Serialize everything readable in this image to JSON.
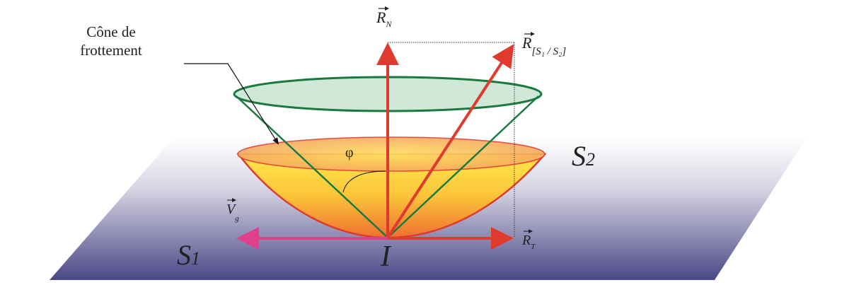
{
  "labels": {
    "cone_line1": "Cône de",
    "cone_line2": "frottement",
    "rn": "R",
    "rn_sub": "N",
    "r": "R",
    "r_sub": "[S₁ / S₂]",
    "rt": "R",
    "rt_sub": "T",
    "vg": "V",
    "vg_sub": "g",
    "phi": "φ",
    "s1": "S",
    "s1_sub": "1",
    "s2": "S",
    "s2_sub": "2",
    "point": "I"
  },
  "colors": {
    "plane_top": "#ffffff",
    "plane_bottom": "#4a4886",
    "cone_green": "#1a7a3e",
    "cone_fill": "#cfe8d8",
    "bowl_top": "#ffe84a",
    "bowl_bottom": "#f07030",
    "arrow_red": "#e03a2e",
    "arrow_pink": "#e0408a"
  }
}
